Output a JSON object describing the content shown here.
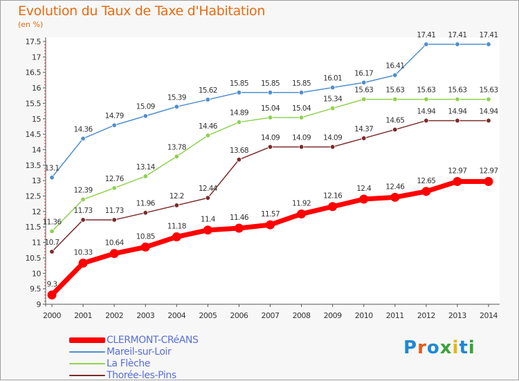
{
  "header": {
    "title": "Evolution du Taux de Taxe d'Habitation",
    "unit": "(en %)"
  },
  "logo": {
    "text": "Proxiti"
  },
  "chart_data": {
    "type": "line",
    "title": "Evolution du Taux de Taxe d'Habitation",
    "ylabel": "(en %)",
    "x": [
      "2000",
      "2001",
      "2002",
      "2003",
      "2004",
      "2005",
      "2006",
      "2007",
      "2008",
      "2009",
      "2010",
      "2011",
      "2012",
      "2013",
      "2014"
    ],
    "ylim": [
      9,
      17.5
    ],
    "yticks": [
      9,
      9.5,
      10,
      10.5,
      11,
      11.5,
      12,
      12.5,
      13,
      13.5,
      14,
      14.5,
      15,
      15.5,
      16,
      16.5,
      17,
      17.5
    ],
    "ytick_labels": [
      "9",
      "9.5",
      "10",
      "10.5",
      "11",
      "11.5",
      "12",
      "12.5",
      "13",
      "13.5",
      "14",
      "14.5",
      "15",
      "15.5",
      "16",
      "16.5",
      "17",
      "17.5"
    ],
    "grid": false,
    "legend": "bottom-left",
    "series": [
      {
        "name": "CLERMONT-CRéANS",
        "color": "#ff0000",
        "values": [
          9.3,
          10.33,
          10.64,
          10.85,
          11.18,
          11.4,
          11.46,
          11.57,
          11.92,
          12.16,
          12.4,
          12.46,
          12.65,
          12.97,
          12.97
        ],
        "labels": [
          "9.3",
          "10.33",
          "10.64",
          "10.85",
          "11.18",
          "11.4",
          "11.46",
          "11.57",
          "11.92",
          "12.16",
          "12.4",
          "12.46",
          "12.65",
          "12.97",
          "12.97"
        ]
      },
      {
        "name": "Mareil-sur-Loir",
        "color": "#4f8ed0",
        "values": [
          13.1,
          14.36,
          14.79,
          15.09,
          15.39,
          15.62,
          15.85,
          15.85,
          15.85,
          16.01,
          16.17,
          16.41,
          17.41,
          17.41,
          17.41
        ],
        "labels": [
          "13.1",
          "14.36",
          "14.79",
          "15.09",
          "15.39",
          "15.62",
          "15.85",
          "15.85",
          "15.85",
          "16.01",
          "16.17",
          "16.41",
          "17.41",
          "17.41",
          "17.41"
        ]
      },
      {
        "name": "La Flèche",
        "color": "#8fd14f",
        "values": [
          11.36,
          12.39,
          12.76,
          13.14,
          13.78,
          14.46,
          14.89,
          15.04,
          15.04,
          15.34,
          15.63,
          15.63,
          15.63,
          15.63,
          15.63
        ],
        "labels": [
          "11.36",
          "12.39",
          "12.76",
          "13.14",
          "13.78",
          "14.46",
          "14.89",
          "15.04",
          "15.04",
          "15.34",
          "15.63",
          "15.63",
          "15.63",
          "15.63",
          "15.63"
        ]
      },
      {
        "name": "Thorée-les-Pins",
        "color": "#7b2a2a",
        "values": [
          10.7,
          11.73,
          11.73,
          11.96,
          12.2,
          12.44,
          13.68,
          14.09,
          14.09,
          14.09,
          14.37,
          14.65,
          14.94,
          14.94,
          14.94
        ],
        "labels": [
          "10.7",
          "11.73",
          "11.73",
          "11.96",
          "12.2",
          "12.44",
          "13.68",
          "14.09",
          "14.09",
          "14.09",
          "14.37",
          "14.65",
          "14.94",
          "14.94",
          "14.94"
        ]
      }
    ]
  }
}
